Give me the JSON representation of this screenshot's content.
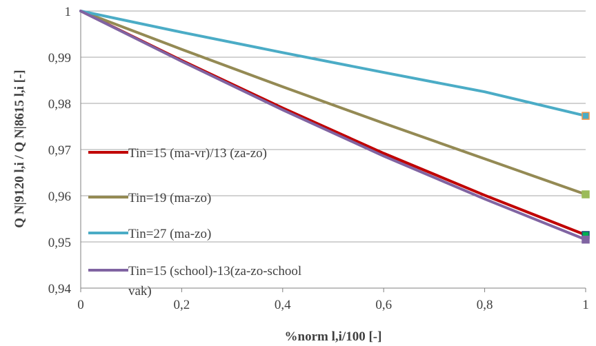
{
  "chart_data": {
    "type": "line",
    "xlabel": "%norm l,i/100 [-]",
    "ylabel": "Q N|9120 l,i / Q N|8615 l,i [-]",
    "xlim": [
      0,
      1
    ],
    "ylim": [
      0.94,
      1
    ],
    "x_ticks": [
      "0",
      "0,2",
      "0,4",
      "0,6",
      "0,8",
      "1"
    ],
    "y_ticks": [
      "0,94",
      "0,95",
      "0,96",
      "0,97",
      "0,98",
      "0,99",
      "1"
    ],
    "grid": "horizontal",
    "legend_position": "left-inside",
    "series": [
      {
        "name": "Tin=15 (ma-vr)/13 (za-zo)",
        "color": "#c00000",
        "x": [
          0,
          0.2,
          0.4,
          0.6,
          0.8,
          1
        ],
        "values": [
          1,
          0.9893,
          0.979,
          0.9692,
          0.9601,
          0.9515
        ]
      },
      {
        "name": "Tin=19 (ma-zo)",
        "color": "#948a54",
        "x": [
          0,
          0.2,
          0.4,
          0.6,
          0.8,
          1
        ],
        "values": [
          1,
          0.9917,
          0.9836,
          0.9757,
          0.968,
          0.9603
        ]
      },
      {
        "name": "Tin=27 (ma-zo)",
        "color": "#4bacc6",
        "x": [
          0,
          0.2,
          0.4,
          0.6,
          0.8,
          1
        ],
        "values": [
          1,
          0.9954,
          0.991,
          0.9867,
          0.9825,
          0.9773
        ]
      },
      {
        "name": "Tin=15 (school)-13(za-zo-school vak)",
        "color": "#8064a2",
        "x": [
          0,
          0.2,
          0.4,
          0.6,
          0.8,
          1
        ],
        "values": [
          1,
          0.9891,
          0.9786,
          0.9686,
          0.9593,
          0.9505
        ]
      }
    ],
    "legend_lines": [
      [
        "Tin=15 (ma-vr)/13 (za-zo)"
      ],
      [
        "Tin=19 (ma-zo)"
      ],
      [
        "Tin=27 (ma-zo)"
      ],
      [
        "Tin=15 (school)-13(za-zo-school",
        "vak)"
      ]
    ]
  }
}
